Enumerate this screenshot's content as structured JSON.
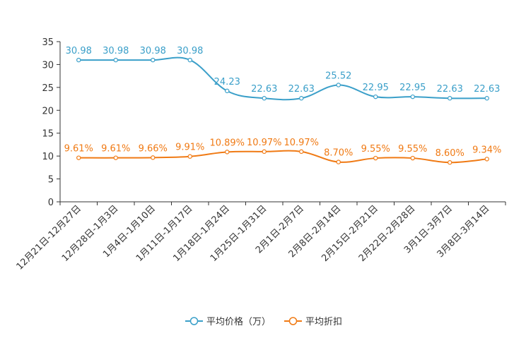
{
  "chart_data": {
    "type": "line",
    "categories": [
      "12月21日-12月27日",
      "12月28日-1月3日",
      "1月4日-1月10日",
      "1月11日-1月17日",
      "1月18日-1月24日",
      "1月25日-1月31日",
      "2月1日-2月7日",
      "2月8日-2月14日",
      "2月15日-2月21日",
      "2月22日-2月28日",
      "3月1日-3月7日",
      "3月8日-3月14日"
    ],
    "ylim": [
      0,
      35
    ],
    "yticks": [
      0,
      5,
      10,
      15,
      20,
      25,
      30,
      35
    ],
    "grid": false,
    "legend_position": "bottom-center",
    "series": [
      {
        "name": "平均价格（万）",
        "color": "#3a9fc9",
        "values": [
          30.98,
          30.98,
          30.98,
          30.98,
          24.23,
          22.63,
          22.63,
          25.52,
          22.95,
          22.95,
          22.63,
          22.63
        ],
        "labels": [
          "30.98",
          "30.98",
          "30.98",
          "30.98",
          "24.23",
          "22.63",
          "22.63",
          "25.52",
          "22.95",
          "22.95",
          "22.63",
          "22.63"
        ]
      },
      {
        "name": "平均折扣",
        "color": "#f07a14",
        "values": [
          9.61,
          9.61,
          9.66,
          9.91,
          10.89,
          10.97,
          10.97,
          8.7,
          9.55,
          9.55,
          8.6,
          9.34
        ],
        "labels": [
          "9.61%",
          "9.61%",
          "9.66%",
          "9.91%",
          "10.89%",
          "10.97%",
          "10.97%",
          "8.70%",
          "9.55%",
          "9.55%",
          "8.60%",
          "9.34%"
        ]
      }
    ]
  }
}
